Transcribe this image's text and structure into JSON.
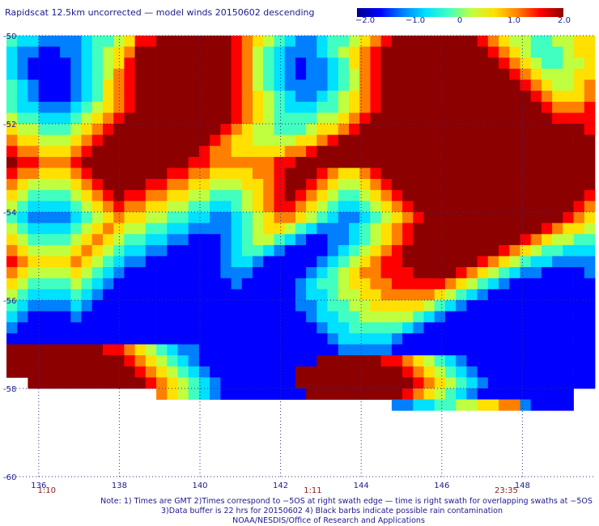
{
  "title": "Rapidscat 12.5km uncorrected — model winds 20150602 descending",
  "colorbar": {
    "tick_labels": [
      "−2.0",
      "−1.0",
      "0",
      "1.0",
      "2.0"
    ],
    "tick_values": [
      -2.0,
      -1.0,
      0,
      1.0,
      2.0
    ],
    "range": [
      -2.0,
      2.0
    ],
    "colors": [
      "#00008c",
      "#0000ff",
      "#0080ff",
      "#00e0ff",
      "#40ffc0",
      "#c0ff40",
      "#ffe000",
      "#ff8000",
      "#ff0000",
      "#8c0000"
    ]
  },
  "chart_data": {
    "type": "heatmap",
    "title": "Rapidscat 12.5km uncorrected — model winds 20150602 descending",
    "x_tick_labels": [
      "136",
      "138",
      "140",
      "142",
      "144",
      "146",
      "148"
    ],
    "x_ticks": [
      136,
      138,
      140,
      142,
      144,
      146,
      148
    ],
    "y_tick_labels": [
      "-50",
      "-52",
      "-54",
      "-56",
      "-58",
      "-60"
    ],
    "y_ticks": [
      -50,
      -52,
      -54,
      -56,
      -58,
      -60
    ],
    "xlim": [
      135.2,
      149.8
    ],
    "ylim": [
      -60,
      -50
    ],
    "value_range": [
      -2.0,
      2.0
    ],
    "grid": true,
    "time_labels": [
      {
        "lon": 136.2,
        "text": "1:10"
      },
      {
        "lon": 142.8,
        "text": "1:11"
      },
      {
        "lon": 147.6,
        "text": "23:35"
      }
    ],
    "field_rows_lat_step": -0.25,
    "field_cols_lon_step": 0.25,
    "field_rows": [
      "EDDCCCCDEEFGIIJJJJJJJIHGFEDCCDEEFGHIJJJJJJJJIHGFFEEFFGG",
      "DCCBBCCDEFGHJJJJJJJJJIHFEDCCCDEFGHIJJJJJJJJJJIHGFEEEFGG",
      "DCBBBBCDEFGIJJJJJJJJJIHFEDCBCCDEGHIJJJJJJJJJJJIHGFEEFFG",
      "DCBBBBCDEFHIJJJJJJJJJIHFEDCBCCDEFHIJJJJJJJJJJJJIHGFFFGG",
      "EDCBBBCDEGHIJJJJJJJJJIHFEDCCCCDEFHIJJJJJJJJJJJJJIHGFFGH",
      "EDCBBBCDEGHIJJJJJJJJJIHGFEDCCDEFGHIJJJJJJJJJJJJJJIHGGGH",
      "EDDCCCDEFGHIJJJJJJJJJIHGFEDDDEEFGHIJJJJJJJJJJJJJJJIHHHI",
      "FEEDDDEFGHIJJJJJJJJJJIHGFEEEEFFGHIJJJJJJJJJJJJJJJJJIIII",
      "GFFEEEFGHIJJJJJJJJJJIHGFFEEEFGGHIJJJJJJJJJJJJJJJJJJJJJI",
      "HGGFFFGHIJJJJJJJJJJIHGGFFFFGGHIJJJJJJJJJJJJJJJJJJJJJJJJ",
      "IHHGGGHIJJJJJJJJJJIHHGGGGGHHIJJJJJJJJJJJJJJJJJJJJJJJJJJ",
      "JIIHHHIJJJJJJJJJJIIHHHHHHIIJJJJJJJJJJJJJJJJJJJJJJJJJJJJ",
      "IHHGGGHIJJJJJJJIIHHGGGGHHIJJJIHGGHIJJJJJJJJJJJJJJJJJJJJ",
      "HGFFFFGHIJJJJIIHHGGFFFGGHIJJIHGFFGHIJJJJJJJJJJJJJJJJJJJ",
      "GFEEEEFGHIJIIHHGGFFEEEFGHIJIHGFEEFGHIJJJJJJJJJJJJJJJJJI",
      "FEDDDDEFGHIHHGGFFEEDDEFGHIIHGFEDDEFGHIJJJJJJJJJJJJJJJIH",
      "EDCCCCDEFGHGGFFEEDDCCDEFGHHGFEDCCDEFGHIJJJJJJJJJJJJJIHG",
      "FEDDDDEFGHGFFEEDDCCCCDEFGGFEDCCCDEFGHIJJJJJJJJJJJJIHGGF",
      "GFEEEEFGHGFEEDDCCBBBCDEFFEDCBBCCDEFGHIJJJJJJJJJJIHGFFEE",
      "HGFFFFGHGFEDDCCBBBBBCDEEDCBBBBCDEFGHIJJJJJJJJJIHGFEEDDD",
      "IHGGGGHGFEDCCBBBBBBBCDDCBBBBBCDEFGHIIJJJJJJJIHGFEDDCCCC",
      "HGFFFFGFEDCBBBBBBBBBCCCBBBBBCDEFGHHIIIJJJJIHGFEDCCBBBBC",
      "GFEEEEFEDCBBBBBBBBBBBCBBBBBCDEEFGGHHIIIIIHGFEDCBBBBBBBB",
      "FEDDDDEDCBBBBBBBBBBBBBBBBBBCDDEFFGGHHHHHGFEDCBBBBBBBBBB",
      "EDCCCCDCBBBBBBBBBBBBBBBBBBBCCDEEFFGGGGGFEDCBBBBBBBBBBBB",
      "DCBBBBCBBBBBBBBBBBBBBBBBBBBBCDDEEFFFFFEDCBBBBBBBBBBBBBB",
      "CBBBBBBBBBBBBBBBBBBBBBBBBBBBBCDDEEEEEDCBBBBBBBBBBBBBBBB",
      "BBBBBBBBBBBBBBBBBBBBBBBBBBBBBBCDDDDDCBBBBBBBBBBBBBBBBBB",
      "JJJJJJJJJIIHGFEDCCBBBBBBBBBBBBBCCCCCBBBBBBBBBBBBBBBBBBB",
      "JJJJJJJJJJJIHGFEDCBBBBBBBBBBBJJJJJJIIHGFEDCBBBBBBBBBBBB",
      "JJJJJJJJJJJJIHGFEDCBBBBBBBBJJJJJJJJJJIHGFEDCBBBBBBBBBBB",
      "..JJJJJJJJJJJIHGFEDCBBBBBBBJJJJJJJJJJJIHGFEDCBBBBBBBBBB",
      "..............HGFEDCBBBBBBBBJJJJJJJJJIHGFEDCBBBBBBBBB..",
      "....................................CCDDEEFFGGHHCBBBB.."
    ]
  },
  "notes": {
    "line1": "Note: 1) Times are GMT 2)Times correspond to −5OS at right swath edge — time is right swath for overlapping swaths at −5OS",
    "line2": "3)Data buffer is 22 hrs for 20150602 4) Black barbs indicate possible rain contamination",
    "line3": "NOAA/NESDIS/Office of Research and Applications"
  }
}
